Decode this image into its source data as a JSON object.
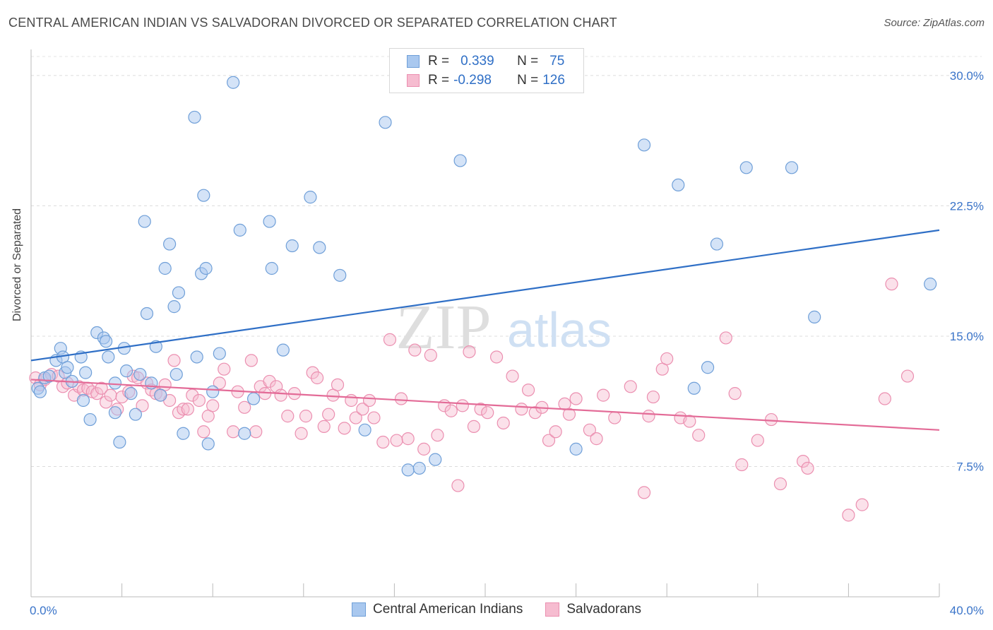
{
  "title": "CENTRAL AMERICAN INDIAN VS SALVADORAN DIVORCED OR SEPARATED CORRELATION CHART",
  "source": "Source: ZipAtlas.com",
  "watermark": {
    "zip": "ZIP",
    "atlas": "atlas"
  },
  "legend": {
    "r_label": "R =",
    "n_label": "N =",
    "rows": [
      {
        "r": "0.339",
        "n": "75"
      },
      {
        "r": "-0.298",
        "n": "126"
      }
    ]
  },
  "bottom_legend": [
    "Central American Indians",
    "Salvadorans"
  ],
  "colors": {
    "blue_fill": "#a9c8ef",
    "blue_stroke": "#6f9fd8",
    "blue_line": "#2f6fc6",
    "pink_fill": "#f6bcd0",
    "pink_stroke": "#eb8fb0",
    "pink_line": "#e36b97",
    "tick_label": "#3a74c9"
  },
  "chart_data": {
    "type": "scatter",
    "title": "CENTRAL AMERICAN INDIAN VS SALVADORAN DIVORCED OR SEPARATED CORRELATION CHART",
    "xlabel": "",
    "ylabel": "Divorced or Separated",
    "xlim": [
      0,
      40
    ],
    "ylim": [
      0,
      31.5
    ],
    "x_tick_labels": [
      "0.0%",
      "40.0%"
    ],
    "y_ticks": [
      7.5,
      15.0,
      22.5,
      30.0
    ],
    "y_tick_labels": [
      "7.5%",
      "15.0%",
      "22.5%",
      "30.0%"
    ],
    "grid": "horizontal dashed",
    "legend_position": "top-center",
    "series": [
      {
        "name": "Central American Indians",
        "r": 0.339,
        "n": 75,
        "trend": {
          "x": [
            0,
            40
          ],
          "y": [
            13.6,
            21.1
          ]
        },
        "points": [
          [
            0.3,
            12.0
          ],
          [
            0.4,
            11.8
          ],
          [
            0.6,
            12.6
          ],
          [
            0.8,
            12.7
          ],
          [
            1.1,
            13.6
          ],
          [
            1.3,
            14.3
          ],
          [
            1.4,
            13.8
          ],
          [
            1.5,
            12.9
          ],
          [
            1.6,
            13.2
          ],
          [
            1.8,
            12.4
          ],
          [
            2.2,
            13.8
          ],
          [
            2.3,
            11.3
          ],
          [
            2.4,
            12.9
          ],
          [
            2.6,
            10.2
          ],
          [
            2.9,
            15.2
          ],
          [
            3.2,
            14.9
          ],
          [
            3.3,
            14.7
          ],
          [
            3.4,
            13.8
          ],
          [
            3.7,
            10.6
          ],
          [
            3.7,
            12.3
          ],
          [
            3.9,
            8.9
          ],
          [
            4.1,
            14.3
          ],
          [
            4.2,
            13.0
          ],
          [
            4.4,
            11.7
          ],
          [
            4.6,
            10.5
          ],
          [
            4.8,
            12.8
          ],
          [
            5.0,
            21.6
          ],
          [
            5.1,
            16.3
          ],
          [
            5.3,
            12.3
          ],
          [
            5.5,
            14.4
          ],
          [
            5.7,
            11.6
          ],
          [
            5.9,
            18.9
          ],
          [
            6.1,
            20.3
          ],
          [
            6.3,
            16.7
          ],
          [
            6.4,
            12.8
          ],
          [
            6.5,
            17.5
          ],
          [
            6.7,
            9.4
          ],
          [
            7.2,
            27.6
          ],
          [
            7.3,
            13.8
          ],
          [
            7.5,
            18.6
          ],
          [
            7.6,
            23.1
          ],
          [
            7.7,
            18.9
          ],
          [
            7.8,
            8.8
          ],
          [
            8.0,
            11.8
          ],
          [
            8.3,
            14.0
          ],
          [
            8.9,
            29.6
          ],
          [
            9.2,
            21.1
          ],
          [
            9.4,
            9.4
          ],
          [
            9.8,
            11.4
          ],
          [
            10.5,
            21.6
          ],
          [
            10.6,
            18.9
          ],
          [
            11.1,
            14.2
          ],
          [
            11.5,
            20.2
          ],
          [
            12.3,
            23.0
          ],
          [
            12.7,
            20.1
          ],
          [
            13.6,
            18.5
          ],
          [
            14.7,
            9.6
          ],
          [
            15.6,
            27.3
          ],
          [
            16.6,
            7.3
          ],
          [
            17.1,
            7.4
          ],
          [
            17.8,
            7.9
          ],
          [
            18.9,
            25.1
          ],
          [
            24.0,
            8.5
          ],
          [
            27.0,
            26.0
          ],
          [
            28.5,
            23.7
          ],
          [
            29.2,
            12.0
          ],
          [
            29.8,
            13.2
          ],
          [
            30.2,
            20.3
          ],
          [
            31.5,
            24.7
          ],
          [
            33.5,
            24.7
          ],
          [
            34.5,
            16.1
          ],
          [
            39.6,
            18.0
          ]
        ]
      },
      {
        "name": "Salvadorans",
        "r": -0.298,
        "n": 126,
        "trend": {
          "x": [
            0,
            40
          ],
          "y": [
            12.5,
            9.6
          ]
        },
        "points": [
          [
            0.2,
            12.6
          ],
          [
            0.4,
            12.2
          ],
          [
            0.6,
            12.5
          ],
          [
            0.9,
            12.8
          ],
          [
            1.2,
            12.7
          ],
          [
            1.4,
            12.1
          ],
          [
            1.6,
            12.3
          ],
          [
            1.9,
            11.6
          ],
          [
            2.1,
            12.1
          ],
          [
            2.3,
            11.9
          ],
          [
            2.5,
            12.0
          ],
          [
            2.7,
            11.8
          ],
          [
            2.9,
            11.7
          ],
          [
            3.1,
            12.0
          ],
          [
            3.3,
            11.2
          ],
          [
            3.5,
            11.6
          ],
          [
            3.8,
            10.8
          ],
          [
            4.0,
            11.5
          ],
          [
            4.3,
            11.8
          ],
          [
            4.5,
            12.7
          ],
          [
            4.7,
            12.6
          ],
          [
            4.9,
            11.0
          ],
          [
            5.1,
            12.3
          ],
          [
            5.3,
            11.9
          ],
          [
            5.5,
            11.7
          ],
          [
            5.7,
            11.6
          ],
          [
            5.9,
            12.2
          ],
          [
            6.1,
            11.3
          ],
          [
            6.3,
            13.6
          ],
          [
            6.5,
            10.6
          ],
          [
            6.7,
            10.8
          ],
          [
            6.9,
            10.8
          ],
          [
            7.1,
            11.6
          ],
          [
            7.4,
            11.3
          ],
          [
            7.6,
            9.5
          ],
          [
            7.8,
            10.4
          ],
          [
            8.0,
            11.0
          ],
          [
            8.3,
            12.3
          ],
          [
            8.5,
            13.1
          ],
          [
            8.9,
            9.5
          ],
          [
            9.1,
            11.8
          ],
          [
            9.4,
            10.9
          ],
          [
            9.7,
            13.6
          ],
          [
            9.9,
            9.5
          ],
          [
            10.1,
            12.1
          ],
          [
            10.3,
            11.7
          ],
          [
            10.5,
            12.4
          ],
          [
            10.8,
            12.1
          ],
          [
            11.0,
            11.6
          ],
          [
            11.3,
            10.4
          ],
          [
            11.6,
            11.7
          ],
          [
            11.9,
            9.4
          ],
          [
            12.1,
            10.4
          ],
          [
            12.4,
            12.9
          ],
          [
            12.6,
            12.6
          ],
          [
            12.9,
            9.8
          ],
          [
            13.1,
            10.5
          ],
          [
            13.3,
            11.6
          ],
          [
            13.5,
            12.2
          ],
          [
            13.8,
            9.7
          ],
          [
            14.1,
            11.3
          ],
          [
            14.3,
            10.3
          ],
          [
            14.6,
            10.8
          ],
          [
            14.9,
            11.3
          ],
          [
            15.1,
            10.3
          ],
          [
            15.5,
            8.9
          ],
          [
            15.8,
            14.8
          ],
          [
            16.1,
            9.0
          ],
          [
            16.3,
            11.4
          ],
          [
            16.6,
            9.1
          ],
          [
            16.9,
            14.2
          ],
          [
            17.3,
            8.5
          ],
          [
            17.6,
            13.9
          ],
          [
            17.9,
            9.3
          ],
          [
            18.2,
            11.0
          ],
          [
            18.5,
            10.7
          ],
          [
            18.8,
            6.4
          ],
          [
            19.0,
            11.0
          ],
          [
            19.3,
            14.1
          ],
          [
            19.5,
            9.8
          ],
          [
            19.8,
            10.8
          ],
          [
            20.1,
            10.6
          ],
          [
            20.5,
            13.8
          ],
          [
            20.8,
            10.0
          ],
          [
            21.2,
            12.7
          ],
          [
            21.6,
            10.8
          ],
          [
            21.9,
            11.9
          ],
          [
            22.2,
            10.6
          ],
          [
            22.5,
            10.9
          ],
          [
            22.8,
            9.0
          ],
          [
            23.1,
            9.5
          ],
          [
            23.5,
            11.1
          ],
          [
            23.7,
            10.5
          ],
          [
            24.0,
            11.4
          ],
          [
            24.6,
            9.6
          ],
          [
            24.9,
            9.1
          ],
          [
            25.2,
            11.6
          ],
          [
            25.7,
            10.3
          ],
          [
            26.4,
            12.1
          ],
          [
            27.0,
            6.0
          ],
          [
            27.2,
            10.4
          ],
          [
            27.4,
            11.5
          ],
          [
            27.8,
            13.1
          ],
          [
            28.0,
            13.7
          ],
          [
            28.6,
            10.3
          ],
          [
            29.0,
            10.1
          ],
          [
            29.4,
            9.3
          ],
          [
            30.6,
            14.9
          ],
          [
            31.0,
            11.7
          ],
          [
            31.3,
            7.6
          ],
          [
            32.0,
            9.0
          ],
          [
            32.6,
            10.2
          ],
          [
            33.0,
            6.5
          ],
          [
            34.0,
            7.8
          ],
          [
            34.2,
            7.4
          ],
          [
            36.0,
            4.7
          ],
          [
            36.6,
            5.3
          ],
          [
            37.6,
            11.4
          ],
          [
            37.9,
            18.0
          ],
          [
            38.6,
            12.7
          ]
        ]
      }
    ]
  }
}
